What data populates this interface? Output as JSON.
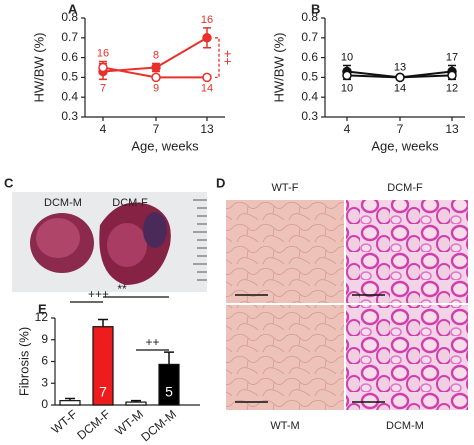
{
  "chart_data": [
    {
      "type": "line",
      "panel": "A",
      "xlabel": "Age, weeks",
      "ylabel": "HW/BW (%)",
      "categories": [
        "4",
        "7",
        "13"
      ],
      "ylim": [
        0.3,
        0.8
      ],
      "yticks": [
        0.3,
        0.4,
        0.5,
        0.6,
        0.7,
        0.8
      ],
      "series": [
        {
          "color": "#e8312a",
          "marker": "filled",
          "values": [
            0.53,
            0.55,
            0.7
          ],
          "errors": [
            0.04,
            0.02,
            0.05
          ],
          "n_labels": [
            "16",
            "8",
            "16"
          ]
        },
        {
          "color": "#e8312a",
          "marker": "open",
          "values": [
            0.55,
            0.5,
            0.5
          ],
          "errors": [
            0.03,
            0.01,
            0.01
          ],
          "n_labels": [
            "7",
            "9",
            "14"
          ]
        }
      ],
      "annotations": [
        "++"
      ]
    },
    {
      "type": "line",
      "panel": "B",
      "xlabel": "Age, weeks",
      "ylabel": "HW/BW (%)",
      "categories": [
        "4",
        "7",
        "13"
      ],
      "ylim": [
        0.3,
        0.8
      ],
      "yticks": [
        0.3,
        0.4,
        0.5,
        0.6,
        0.7,
        0.8
      ],
      "series": [
        {
          "color": "#111111",
          "marker": "filled",
          "values": [
            0.53,
            0.5,
            0.53
          ],
          "errors": [
            0.03,
            0.01,
            0.03
          ],
          "n_labels": [
            "10",
            "13",
            "17"
          ]
        },
        {
          "color": "#111111",
          "marker": "open",
          "values": [
            0.51,
            0.5,
            0.51
          ],
          "errors": [
            0.02,
            0.01,
            0.02
          ],
          "n_labels": [
            "10",
            "14",
            "12"
          ]
        }
      ],
      "annotations": []
    },
    {
      "type": "bar",
      "panel": "E",
      "ylabel": "Fibrosis (%)",
      "categories": [
        "WT-F",
        "DCM-F",
        "WT-M",
        "DCM-M"
      ],
      "values": [
        0.6,
        10.8,
        0.4,
        5.6
      ],
      "errors": [
        0.3,
        1.0,
        0.2,
        1.7
      ],
      "colors": [
        "#ffffff",
        "#ee1c1c",
        "#ffffff",
        "#000000"
      ],
      "n_labels": [
        null,
        "7",
        null,
        "5"
      ],
      "ylim": [
        0,
        12
      ],
      "yticks": [
        0,
        3,
        6,
        9,
        12
      ],
      "annotations": [
        "+++",
        "**",
        "++"
      ]
    }
  ],
  "photo": {
    "panel": "C",
    "labels": [
      "DCM-M",
      "DCM-F"
    ]
  },
  "histology": {
    "panel": "D",
    "labels": [
      "WT-F",
      "DCM-F",
      "WT-M",
      "DCM-M"
    ]
  }
}
